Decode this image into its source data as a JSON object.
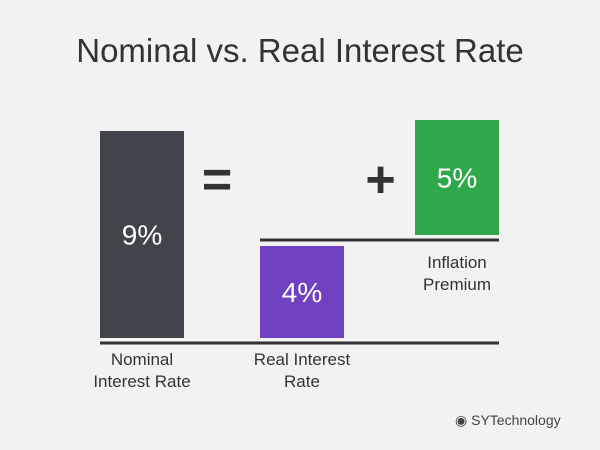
{
  "chart_data": {
    "type": "waterfall",
    "title": "Nominal vs. Real Interest Rate",
    "categories": [
      "Nominal Interest Rate",
      "Real Interest Rate",
      "Inflation Premium"
    ],
    "values": [
      9,
      4,
      5
    ],
    "value_labels": [
      "9%",
      "4%",
      "5%"
    ],
    "colors": [
      "#41444b",
      "#6f42c1",
      "#2ea84a"
    ],
    "operators": [
      "=",
      "+"
    ],
    "watermark": "SYTechnology"
  }
}
